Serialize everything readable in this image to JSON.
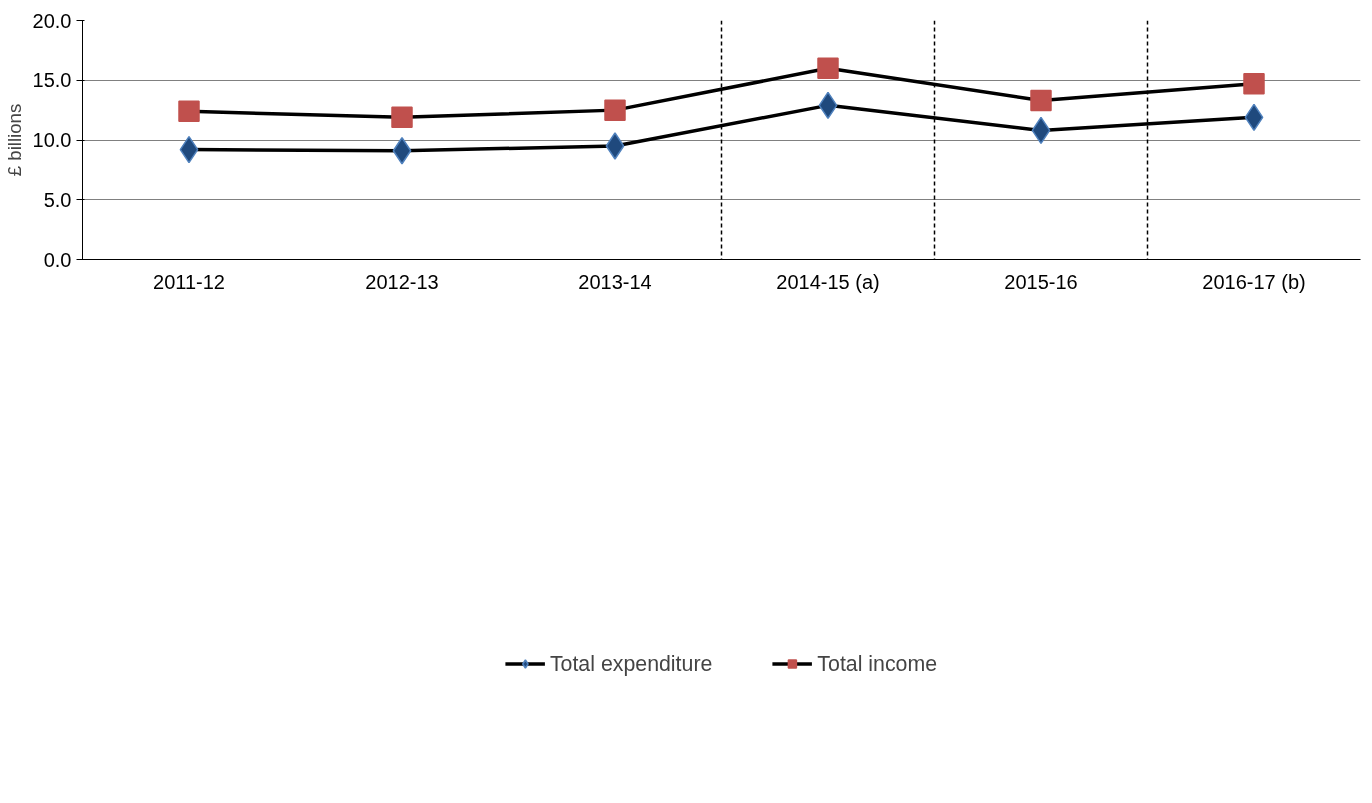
{
  "chart_data": {
    "type": "line",
    "ylabel": "£ billions",
    "categories": [
      "2011-12",
      "2012-13",
      "2013-14",
      "2014-15 (a)",
      "2015-16",
      "2016-17 (b)"
    ],
    "series": [
      {
        "name": "Total expenditure",
        "color": "#1f497d",
        "marker": "diamond",
        "values": [
          9.2,
          9.1,
          9.5,
          12.9,
          10.8,
          11.9
        ]
      },
      {
        "name": "Total income",
        "color": "#c0504d",
        "marker": "square",
        "values": [
          12.4,
          11.9,
          12.5,
          16.0,
          13.3,
          14.7
        ]
      }
    ],
    "ylim": [
      0,
      20
    ],
    "yticks": [
      {
        "value": 0,
        "label": "0.0"
      },
      {
        "value": 5,
        "label": "5.0"
      },
      {
        "value": 10,
        "label": "10.0"
      },
      {
        "value": 15,
        "label": "15.0"
      },
      {
        "value": 20,
        "label": "20.0"
      }
    ],
    "grid": "y",
    "legend": "bottom",
    "line_style": "solid"
  }
}
